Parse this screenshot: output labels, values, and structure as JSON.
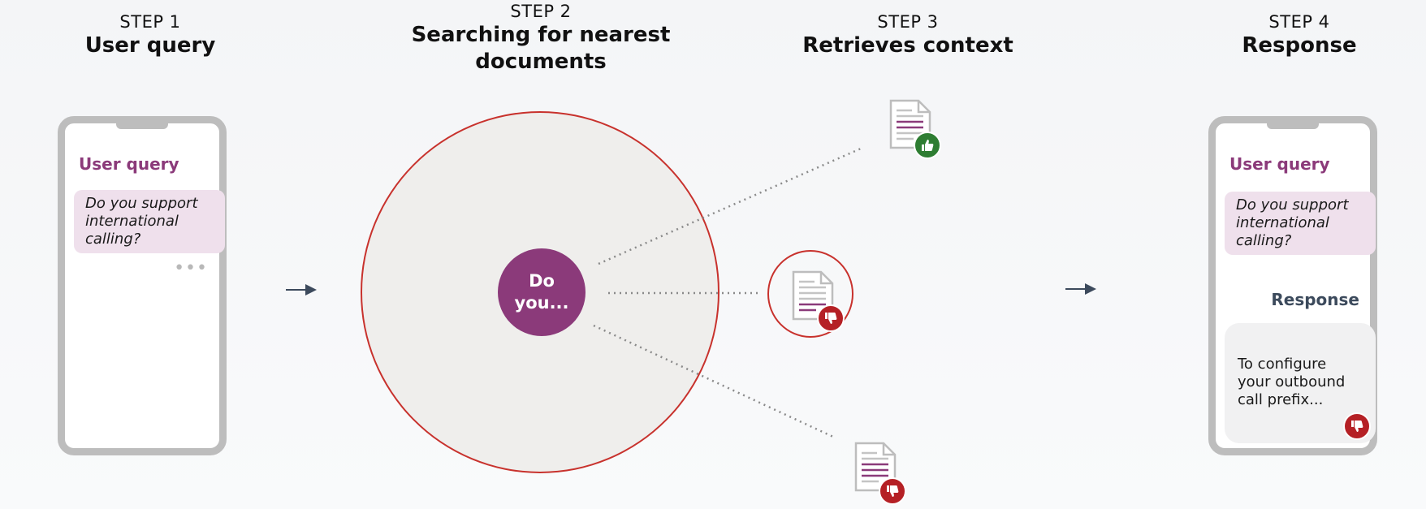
{
  "steps": [
    {
      "number": "STEP 1",
      "title": "User query"
    },
    {
      "number": "STEP 2",
      "title_line1": "Searching for nearest",
      "title_line2": "documents"
    },
    {
      "number": "STEP 3",
      "title": "Retrieves context"
    },
    {
      "number": "STEP 4",
      "title": "Response"
    }
  ],
  "phone_left": {
    "label": "User query",
    "query_line1": "Do you support",
    "query_line2": "international",
    "query_line3": "calling?",
    "typing": "•••"
  },
  "search": {
    "query_line1": "Do",
    "query_line2": "you..."
  },
  "documents": [
    {
      "name": "document-top",
      "rating": "thumbs-up"
    },
    {
      "name": "document-middle",
      "rating": "thumbs-down"
    },
    {
      "name": "document-bottom",
      "rating": "thumbs-down"
    }
  ],
  "phone_right": {
    "label": "User query",
    "query_line1": "Do you support",
    "query_line2": "international",
    "query_line3": "calling?",
    "response_label": "Response",
    "response_line1": "To configure",
    "response_line2": "your outbound",
    "response_line3": "call prefix...",
    "response_rating": "thumbs-down"
  },
  "colors": {
    "accent": "#8b3a7a",
    "query_bubble": "#efe0ec",
    "circle_border": "#c8322d",
    "thumbs_up": "#2e7d32",
    "thumbs_down": "#b52025",
    "arrow": "#3c4a5c"
  }
}
